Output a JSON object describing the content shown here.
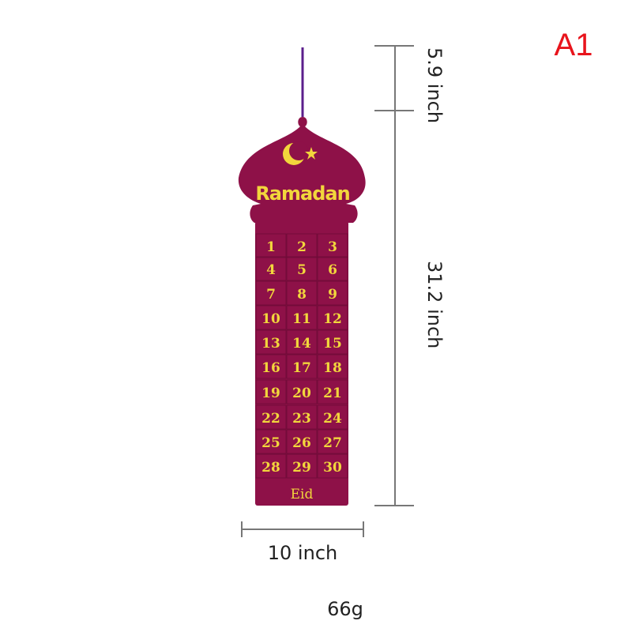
{
  "product": {
    "title_text": "Ramadan",
    "days": [
      "1",
      "2",
      "3",
      "4",
      "5",
      "6",
      "7",
      "8",
      "9",
      "10",
      "11",
      "12",
      "13",
      "14",
      "15",
      "16",
      "17",
      "18",
      "19",
      "20",
      "21",
      "22",
      "23",
      "24",
      "25",
      "26",
      "27",
      "28",
      "29",
      "30"
    ],
    "final_pocket": "Eid",
    "felt_color": "#8e1148",
    "text_color": "#f2d63c",
    "hanger_color": "#5b1f8c"
  },
  "dimensions": {
    "hanger_height": "5.9 inch",
    "body_height": "31.2 inch",
    "width": "10 inch",
    "weight": "66g"
  },
  "variant_label": "A1"
}
